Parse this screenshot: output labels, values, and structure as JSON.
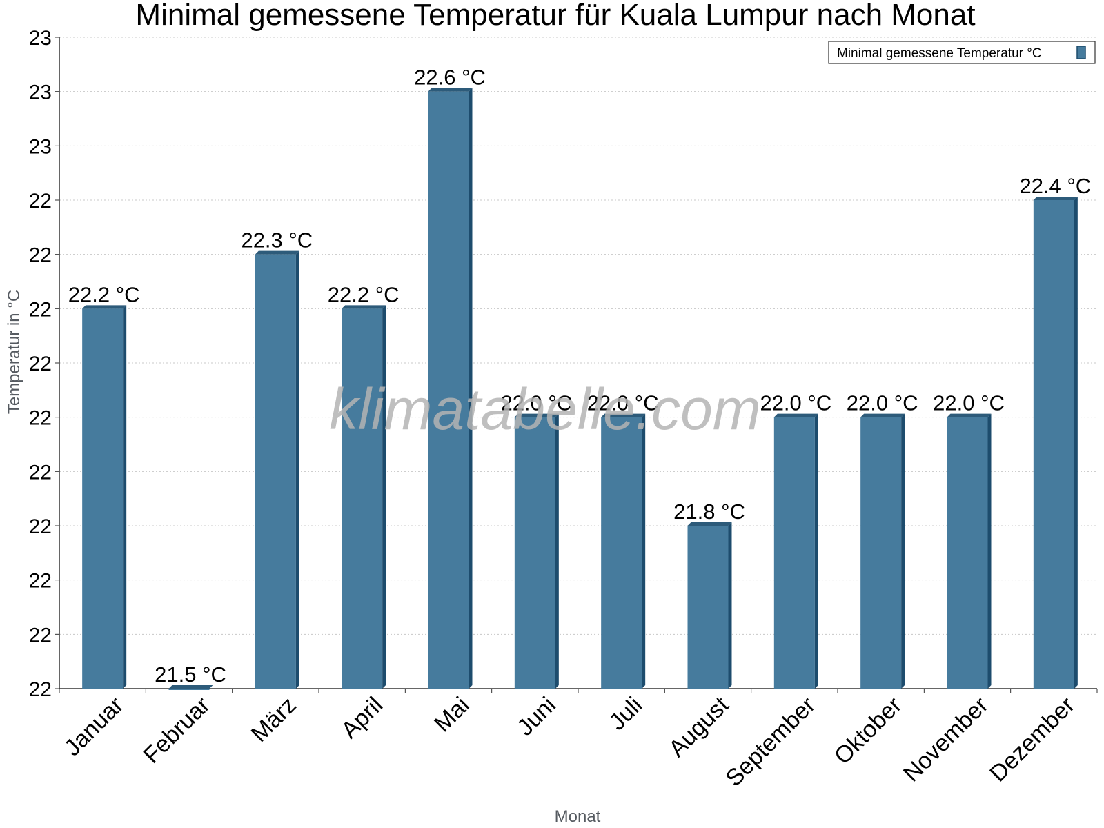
{
  "watermark": "klimatabelle.com",
  "chart_data": {
    "type": "bar",
    "title": "Minimal gemessene Temperatur für Kuala Lumpur nach Monat",
    "xlabel": "Monat",
    "ylabel": "Temperatur in °C",
    "categories": [
      "Januar",
      "Februar",
      "März",
      "April",
      "Mai",
      "Juni",
      "Juli",
      "August",
      "September",
      "Oktober",
      "November",
      "Dezember"
    ],
    "series": [
      {
        "name": "Minimal gemessene Temperatur °C",
        "values": [
          22.2,
          21.5,
          22.3,
          22.2,
          22.6,
          22.0,
          22.0,
          21.8,
          22.0,
          22.0,
          22.0,
          22.4
        ],
        "labels": [
          "22.2 °C",
          "21.5 °C",
          "22.3 °C",
          "22.2 °C",
          "22.6 °C",
          "22.0 °C",
          "22.0 °C",
          "21.8 °C",
          "22.0 °C",
          "22.0 °C",
          "22.0 °C",
          "22.4 °C"
        ]
      }
    ],
    "ylim": [
      21.5,
      22.7
    ],
    "yticks": [
      21.5,
      21.6,
      21.7,
      21.8,
      21.9,
      22.0,
      22.1,
      22.2,
      22.3,
      22.4,
      22.5,
      22.6,
      22.7
    ],
    "ytick_labels": [
      "22",
      "22",
      "22",
      "22",
      "22",
      "22",
      "22",
      "22",
      "22",
      "22",
      "23",
      "23",
      "23"
    ],
    "grid": true,
    "legend_position": "top-right",
    "colors": {
      "bar": "#467b9d",
      "bar_top": "#2d5b7a",
      "bar_side": "#1d4c6d",
      "grid": "#c8c8c8",
      "axis": "#333333"
    }
  }
}
